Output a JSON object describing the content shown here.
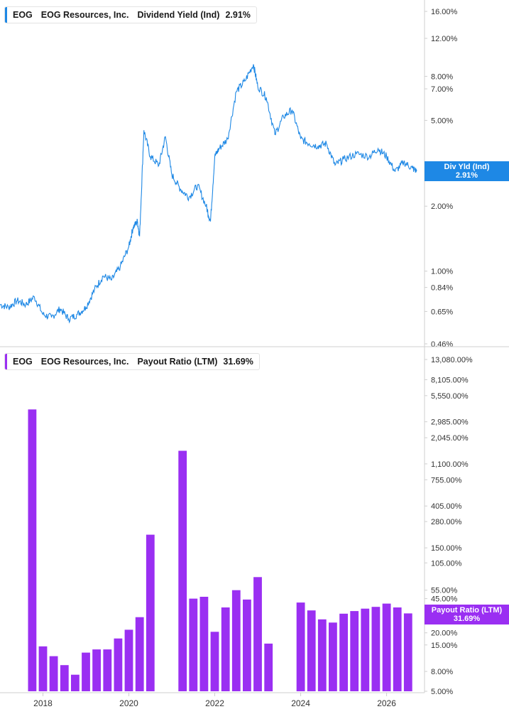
{
  "panels": {
    "top": {
      "ticker": "EOG",
      "company": "EOG Resources, Inc.",
      "metric": "Dividend Yield (Ind)",
      "value": "2.91%",
      "tag_label": "Div Yld (Ind)",
      "tag_value": "2.91%",
      "color": "#1e88e5"
    },
    "bottom": {
      "ticker": "EOG",
      "company": "EOG Resources, Inc.",
      "metric": "Payout Ratio (LTM)",
      "value": "31.69%",
      "tag_label": "Payout Ratio (LTM)",
      "tag_value": "31.69%",
      "color": "#9a2ff2"
    }
  },
  "chart_data": [
    {
      "type": "line",
      "scale": "log",
      "series": [
        {
          "name": "Dividend Yield (Ind)",
          "x": [
            2017.0,
            2017.2,
            2017.4,
            2017.6,
            2017.8,
            2018.0,
            2018.2,
            2018.4,
            2018.6,
            2018.8,
            2019.0,
            2019.2,
            2019.4,
            2019.6,
            2019.8,
            2020.0,
            2020.1,
            2020.2,
            2020.25,
            2020.35,
            2020.5,
            2020.7,
            2020.85,
            2021.0,
            2021.2,
            2021.4,
            2021.6,
            2021.8,
            2021.9,
            2022.0,
            2022.1,
            2022.3,
            2022.5,
            2022.7,
            2022.9,
            2023.0,
            2023.2,
            2023.4,
            2023.6,
            2023.8,
            2024.0,
            2024.2,
            2024.4,
            2024.6,
            2024.8,
            2025.0,
            2025.3,
            2025.6,
            2025.8,
            2026.0,
            2026.2,
            2026.4,
            2026.6,
            2026.7
          ],
          "y": [
            0.7,
            0.68,
            0.73,
            0.7,
            0.76,
            0.63,
            0.61,
            0.67,
            0.6,
            0.63,
            0.68,
            0.82,
            0.95,
            0.91,
            1.05,
            1.3,
            1.6,
            1.7,
            1.45,
            4.5,
            3.4,
            3.1,
            4.2,
            2.8,
            2.4,
            2.2,
            2.5,
            2.0,
            1.7,
            3.4,
            3.7,
            4.1,
            6.8,
            7.6,
            9.1,
            7.2,
            6.4,
            4.3,
            5.2,
            5.6,
            4.1,
            3.9,
            3.8,
            3.9,
            3.1,
            3.3,
            3.5,
            3.4,
            3.7,
            3.4,
            2.9,
            3.2,
            3.0,
            2.91
          ]
        }
      ],
      "y_ticks": [
        "16.00%",
        "12.00%",
        "8.00%",
        "7.00%",
        "5.00%",
        "2.00%",
        "1.00%",
        "0.84%",
        "0.65%",
        "0.46%"
      ],
      "y_tick_values": [
        16,
        12,
        8,
        7,
        5,
        2,
        1,
        0.84,
        0.65,
        0.46
      ],
      "ylim": [
        0.46,
        16.5
      ]
    },
    {
      "type": "bar",
      "scale": "log",
      "series": [
        {
          "name": "Payout Ratio (LTM)",
          "x": [
            2017.75,
            2018.0,
            2018.25,
            2018.5,
            2018.75,
            2019.0,
            2019.25,
            2019.5,
            2019.75,
            2020.0,
            2020.25,
            2020.5,
            2021.25,
            2021.5,
            2021.75,
            2022.0,
            2022.25,
            2022.5,
            2022.75,
            2023.0,
            2023.25,
            2024.0,
            2024.25,
            2024.5,
            2024.75,
            2025.0,
            2025.25,
            2025.5,
            2025.75,
            2026.0,
            2026.25,
            2026.5
          ],
          "values": [
            4000,
            14.5,
            11.5,
            9.3,
            7.4,
            12.5,
            13.5,
            13.5,
            17.5,
            21.5,
            29.0,
            205,
            1500,
            45,
            47,
            20.5,
            36.5,
            55,
            44,
            75,
            15.5,
            41,
            34,
            27.5,
            25.5,
            31.5,
            33.5,
            35.5,
            37,
            40,
            36.5,
            31.69
          ]
        }
      ],
      "y_ticks": [
        "13,080.00%",
        "8,105.00%",
        "5,550.00%",
        "2,985.00%",
        "2,045.00%",
        "1,100.00%",
        "755.00%",
        "405.00%",
        "280.00%",
        "150.00%",
        "105.00%",
        "55.00%",
        "45.00%",
        "20.00%",
        "15.00%",
        "8.00%",
        "5.00%"
      ],
      "y_tick_values": [
        13080,
        8105,
        5550,
        2985,
        2045,
        1100,
        755,
        405,
        280,
        150,
        105,
        55,
        45,
        20,
        15,
        8,
        5
      ],
      "ylim": [
        5,
        13080
      ]
    }
  ],
  "x_axis": {
    "ticks": [
      "2018",
      "2020",
      "2022",
      "2024",
      "2026"
    ],
    "tick_values": [
      2018,
      2020,
      2022,
      2024,
      2026
    ],
    "range": [
      2017.0,
      2026.85
    ]
  },
  "colors": {
    "line": "#1e88e5",
    "bars": "#9a2ff2",
    "axis": "#cfcfcf",
    "tick_text": "#333333"
  }
}
